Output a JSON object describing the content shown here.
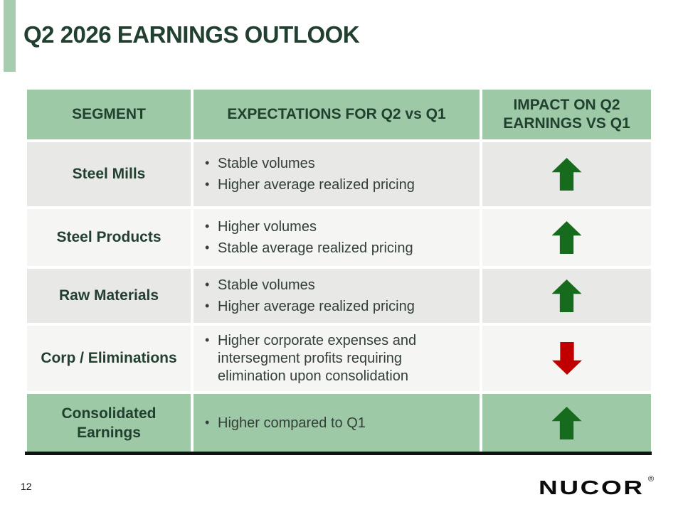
{
  "slide": {
    "title": "Q2 2026 EARNINGS OUTLOOK",
    "page_number": "12",
    "logo_text": "NUCOR",
    "logo_reg": "®"
  },
  "colors": {
    "header_green": "#9DC9A6",
    "accent_green": "#A7CDAF",
    "title_green": "#21402F",
    "body_text": "#333F38",
    "row_gray": "#E8E8E7",
    "row_light": "#F5F5F3",
    "arrow_up": "#166C1C",
    "arrow_down": "#C00000",
    "bar_black": "#121212"
  },
  "table": {
    "headers": [
      "SEGMENT",
      "EXPECTATIONS FOR Q2 vs Q1",
      "IMPACT ON Q2 EARNINGS VS Q1"
    ],
    "rows": [
      {
        "segment": "Steel Mills",
        "bullets": [
          "Stable volumes",
          "Higher average realized pricing"
        ],
        "impact": "up"
      },
      {
        "segment": "Steel Products",
        "bullets": [
          "Higher volumes",
          "Stable average realized pricing"
        ],
        "impact": "up"
      },
      {
        "segment": "Raw Materials",
        "bullets": [
          "Stable volumes",
          "Higher average realized pricing"
        ],
        "impact": "up"
      },
      {
        "segment": "Corp / Eliminations",
        "bullets": [
          "Higher corporate expenses and intersegment profits requiring elimination upon consolidation"
        ],
        "impact": "down"
      },
      {
        "segment": "Consolidated Earnings",
        "bullets": [
          "Higher compared to Q1"
        ],
        "impact": "up"
      }
    ]
  }
}
